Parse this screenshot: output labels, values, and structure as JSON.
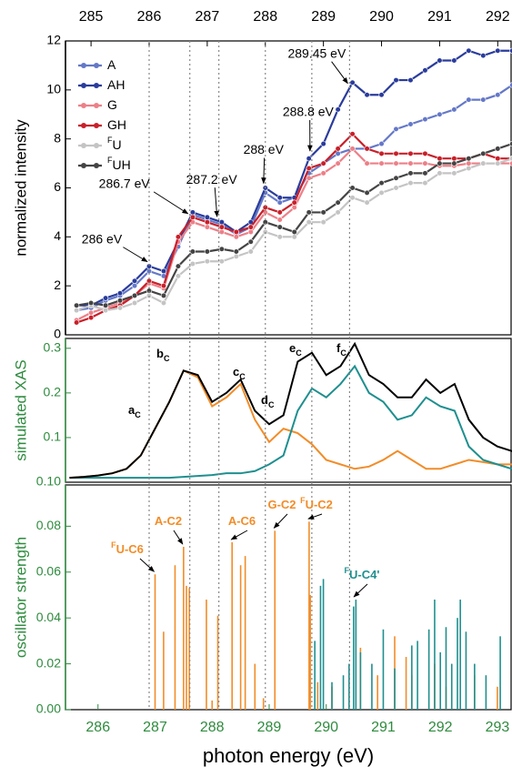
{
  "chart_data": [
    {
      "type": "line",
      "xaxis": "top",
      "axis_color": "#000000",
      "ylabel": "normalized intensity",
      "xlim": [
        284.56,
        292.23
      ],
      "xticks": [
        285,
        286,
        287,
        288,
        289,
        290,
        291,
        292
      ],
      "ylim": [
        0,
        12
      ],
      "yticks": [
        0,
        2,
        4,
        6,
        8,
        10,
        12
      ],
      "x": [
        284.75,
        285,
        285.25,
        285.5,
        285.75,
        286,
        286.25,
        286.5,
        286.75,
        287,
        287.25,
        287.5,
        287.75,
        288,
        288.25,
        288.5,
        288.75,
        289,
        289.25,
        289.5,
        289.75,
        290,
        290.25,
        290.5,
        290.75,
        291,
        291.25,
        291.5,
        291.75,
        292,
        292.25
      ],
      "series": [
        {
          "name": "A",
          "color": "#6478c8",
          "values": [
            1.0,
            1.1,
            1.4,
            1.6,
            2.0,
            2.6,
            2.4,
            3.6,
            4.9,
            4.7,
            4.5,
            4.1,
            4.4,
            5.8,
            5.4,
            5.6,
            6.6,
            7.0,
            7.4,
            7.6,
            7.6,
            7.8,
            8.4,
            8.6,
            8.8,
            9.0,
            9.2,
            9.6,
            9.6,
            9.8,
            10.2
          ]
        },
        {
          "name": "AH",
          "color": "#2a3c9c",
          "values": [
            1.2,
            1.2,
            1.5,
            1.7,
            2.2,
            2.8,
            2.6,
            3.8,
            5.0,
            4.8,
            4.6,
            4.2,
            4.6,
            6.0,
            5.6,
            5.6,
            7.2,
            7.8,
            9.2,
            10.3,
            9.8,
            9.8,
            10.4,
            10.4,
            10.8,
            11.2,
            11.2,
            11.6,
            11.4,
            11.6,
            11.6
          ]
        },
        {
          "name": "G",
          "color": "#ec8088",
          "values": [
            0.6,
            0.9,
            1.1,
            1.3,
            1.6,
            2.1,
            1.9,
            3.8,
            4.6,
            4.4,
            4.2,
            4.0,
            4.2,
            5.0,
            4.7,
            5.2,
            6.4,
            6.6,
            7.0,
            7.6,
            7.0,
            7.0,
            7.0,
            7.0,
            7.0,
            6.9,
            6.9,
            7.0,
            7.0,
            7.0,
            7.0
          ]
        },
        {
          "name": "GH",
          "color": "#c8202a",
          "values": [
            0.5,
            0.7,
            1.0,
            1.2,
            1.6,
            2.2,
            2.0,
            4.0,
            4.8,
            4.6,
            4.4,
            4.2,
            4.4,
            5.2,
            5.0,
            5.4,
            6.8,
            7.0,
            7.6,
            8.2,
            7.6,
            7.4,
            7.4,
            7.4,
            7.4,
            7.2,
            7.2,
            7.2,
            7.4,
            7.2,
            7.2
          ]
        },
        {
          "name": "U",
          "name_sup": "F",
          "color": "#c4c4c4",
          "values": [
            1.0,
            1.2,
            1.0,
            1.1,
            1.3,
            1.6,
            1.3,
            2.4,
            2.9,
            3.0,
            3.0,
            3.2,
            3.4,
            4.2,
            4.0,
            4.0,
            4.6,
            4.6,
            5.0,
            5.6,
            5.4,
            5.8,
            6.0,
            6.2,
            6.2,
            6.6,
            6.6,
            6.8,
            7.0,
            7.0,
            7.2
          ]
        },
        {
          "name": "UH",
          "name_sup": "F",
          "color": "#444444",
          "values": [
            1.2,
            1.3,
            1.2,
            1.4,
            1.6,
            1.8,
            1.6,
            2.8,
            3.4,
            3.4,
            3.5,
            3.4,
            3.8,
            4.6,
            4.4,
            4.2,
            5.0,
            5.0,
            5.4,
            6.0,
            5.8,
            6.2,
            6.4,
            6.6,
            6.6,
            7.0,
            7.0,
            7.2,
            7.4,
            7.6,
            7.8
          ]
        }
      ],
      "annotations": [
        {
          "text": "286 eV",
          "x": 286
        },
        {
          "text": "286.7 eV",
          "x": 286.7
        },
        {
          "text": "287.2 eV",
          "x": 287.2
        },
        {
          "text": "288 eV",
          "x": 288
        },
        {
          "text": "288.8 eV",
          "x": 288.8
        },
        {
          "text": "289.45 eV",
          "x": 289.45
        }
      ]
    },
    {
      "type": "line",
      "axis_color": "#2e8b3e",
      "ylabel": "simulated XAS",
      "xlim": [
        285.43,
        293.24
      ],
      "ylim": [
        0,
        0.322
      ],
      "yticks": [
        0.1,
        0.2,
        0.3
      ],
      "y_bottom_label": "0.10",
      "x": [
        285.5,
        285.75,
        286,
        286.25,
        286.5,
        286.75,
        287,
        287.25,
        287.5,
        287.75,
        288,
        288.25,
        288.5,
        288.75,
        289,
        289.25,
        289.5,
        289.75,
        290,
        290.25,
        290.5,
        290.75,
        291,
        291.25,
        291.5,
        291.75,
        292,
        292.25,
        292.5,
        292.75,
        293,
        293.25,
        293.5
      ],
      "series": [
        {
          "color": "#f28c28",
          "values": [
            0.01,
            0.012,
            0.015,
            0.02,
            0.03,
            0.06,
            0.12,
            0.18,
            0.25,
            0.235,
            0.17,
            0.19,
            0.22,
            0.14,
            0.09,
            0.12,
            0.11,
            0.085,
            0.05,
            0.04,
            0.03,
            0.035,
            0.05,
            0.07,
            0.05,
            0.03,
            0.03,
            0.04,
            0.05,
            0.045,
            0.04,
            0.04,
            0.04
          ]
        },
        {
          "color": "#1f8f8f",
          "values": [
            0.01,
            0.01,
            0.01,
            0.01,
            0.01,
            0.01,
            0.01,
            0.01,
            0.012,
            0.014,
            0.016,
            0.02,
            0.02,
            0.025,
            0.04,
            0.06,
            0.16,
            0.21,
            0.19,
            0.22,
            0.26,
            0.2,
            0.18,
            0.14,
            0.15,
            0.19,
            0.17,
            0.16,
            0.08,
            0.05,
            0.04,
            0.03,
            0.01
          ]
        },
        {
          "color": "#000000",
          "values": [
            0.01,
            0.012,
            0.015,
            0.02,
            0.03,
            0.06,
            0.12,
            0.18,
            0.25,
            0.24,
            0.18,
            0.2,
            0.23,
            0.16,
            0.13,
            0.15,
            0.27,
            0.29,
            0.24,
            0.26,
            0.31,
            0.24,
            0.22,
            0.19,
            0.19,
            0.23,
            0.2,
            0.22,
            0.14,
            0.1,
            0.08,
            0.07,
            0.06
          ]
        }
      ],
      "peak_labels": [
        {
          "text": "a",
          "sub": "C"
        },
        {
          "text": "b",
          "sub": "C"
        },
        {
          "text": "c",
          "sub": "C"
        },
        {
          "text": "d",
          "sub": "C"
        },
        {
          "text": "e",
          "sub": "C"
        },
        {
          "text": "f",
          "sub": "C"
        }
      ]
    },
    {
      "type": "stick",
      "axis_color": "#2e8b3e",
      "ylabel": "oscillator strength",
      "xlabel": "photon energy (eV)",
      "xlim": [
        285.43,
        293.24
      ],
      "xticks": [
        286,
        287,
        288,
        289,
        290,
        291,
        292,
        293
      ],
      "ylim": [
        0,
        0.098
      ],
      "yticks": [
        {
          "value": 0,
          "label": "0.00"
        },
        {
          "value": 0.02,
          "label": "0.02"
        },
        {
          "value": 0.04,
          "label": "0.04"
        },
        {
          "value": 0.06,
          "label": "0.06"
        },
        {
          "value": 0.08,
          "label": "0.08"
        }
      ],
      "series": [
        {
          "color": "#f28c28",
          "x": [
            287.0,
            287.15,
            287.35,
            287.5,
            287.55,
            287.6,
            287.9,
            288.0,
            288.1,
            288.35,
            288.5,
            288.58,
            288.75,
            288.9,
            289.1,
            289.7,
            289.72,
            289.85,
            290.1,
            290.6,
            290.9,
            291.2,
            291.4,
            291.5,
            291.9,
            292.1,
            292.6,
            293.0,
            293.3
          ],
          "values": [
            0.059,
            0.034,
            0.063,
            0.071,
            0.054,
            0.053,
            0.048,
            0.004,
            0.041,
            0.073,
            0.063,
            0.067,
            0.02,
            0.005,
            0.078,
            0.082,
            0.05,
            0.012,
            0.01,
            0.027,
            0.015,
            0.032,
            0.023,
            0.015,
            0.02,
            0.01,
            0.015,
            0.01,
            0.012
          ]
        },
        {
          "color": "#1f8f8f",
          "x": [
            289.8,
            289.9,
            289.95,
            290.1,
            290.3,
            290.4,
            290.48,
            290.52,
            290.6,
            290.8,
            291.0,
            291.2,
            291.5,
            291.6,
            291.8,
            291.9,
            292.0,
            292.1,
            292.2,
            292.3,
            292.35,
            292.45,
            292.6,
            292.8,
            293.05,
            293.3
          ],
          "values": [
            0.03,
            0.054,
            0.057,
            0.012,
            0.015,
            0.02,
            0.045,
            0.048,
            0.025,
            0.02,
            0.035,
            0.018,
            0.028,
            0.03,
            0.035,
            0.048,
            0.025,
            0.036,
            0.02,
            0.04,
            0.048,
            0.034,
            0.02,
            0.015,
            0.032,
            0.015
          ]
        }
      ],
      "annotations": [
        {
          "sup": "F",
          "text": "U-C6",
          "color": "#f28c28"
        },
        {
          "text": "A-C2",
          "color": "#f28c28"
        },
        {
          "text": "A-C6",
          "color": "#f28c28"
        },
        {
          "text": "G-C2",
          "color": "#f28c28"
        },
        {
          "sup": "F",
          "text": "U-C2",
          "color": "#f28c28"
        },
        {
          "sup": "F",
          "text": "U-C4'",
          "color": "#1f8f8f"
        }
      ]
    }
  ]
}
